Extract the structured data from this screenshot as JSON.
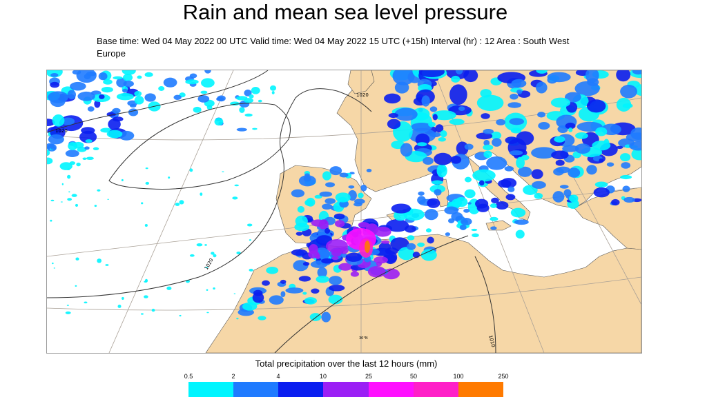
{
  "header": {
    "title": "Rain and mean sea level pressure",
    "subtitle": "Base time: Wed 04 May 2022 00 UTC Valid time: Wed 04 May 2022 15 UTC (+15h) Interval (hr) : 12 Area : South West Europe"
  },
  "map": {
    "contour_labels": [
      "1020",
      "1020",
      "1020",
      "1010"
    ],
    "graticule_label": "30°N",
    "colors": {
      "land": "#f6d7a7",
      "sea": "#ffffff",
      "coastline": "#555555",
      "isobar": "#333333",
      "graticule": "#a9a096"
    }
  },
  "legend": {
    "title": "Total precipitation over the last 12 hours (mm)",
    "ticks": [
      "0.5",
      "2",
      "4",
      "10",
      "25",
      "50",
      "100",
      "250"
    ],
    "colors": [
      "#00f5ff",
      "#1f7bff",
      "#0a1ef0",
      "#9b1ff5",
      "#ff10ff",
      "#ff20c8",
      "#ff7a00",
      "#ff1a0a"
    ]
  }
}
